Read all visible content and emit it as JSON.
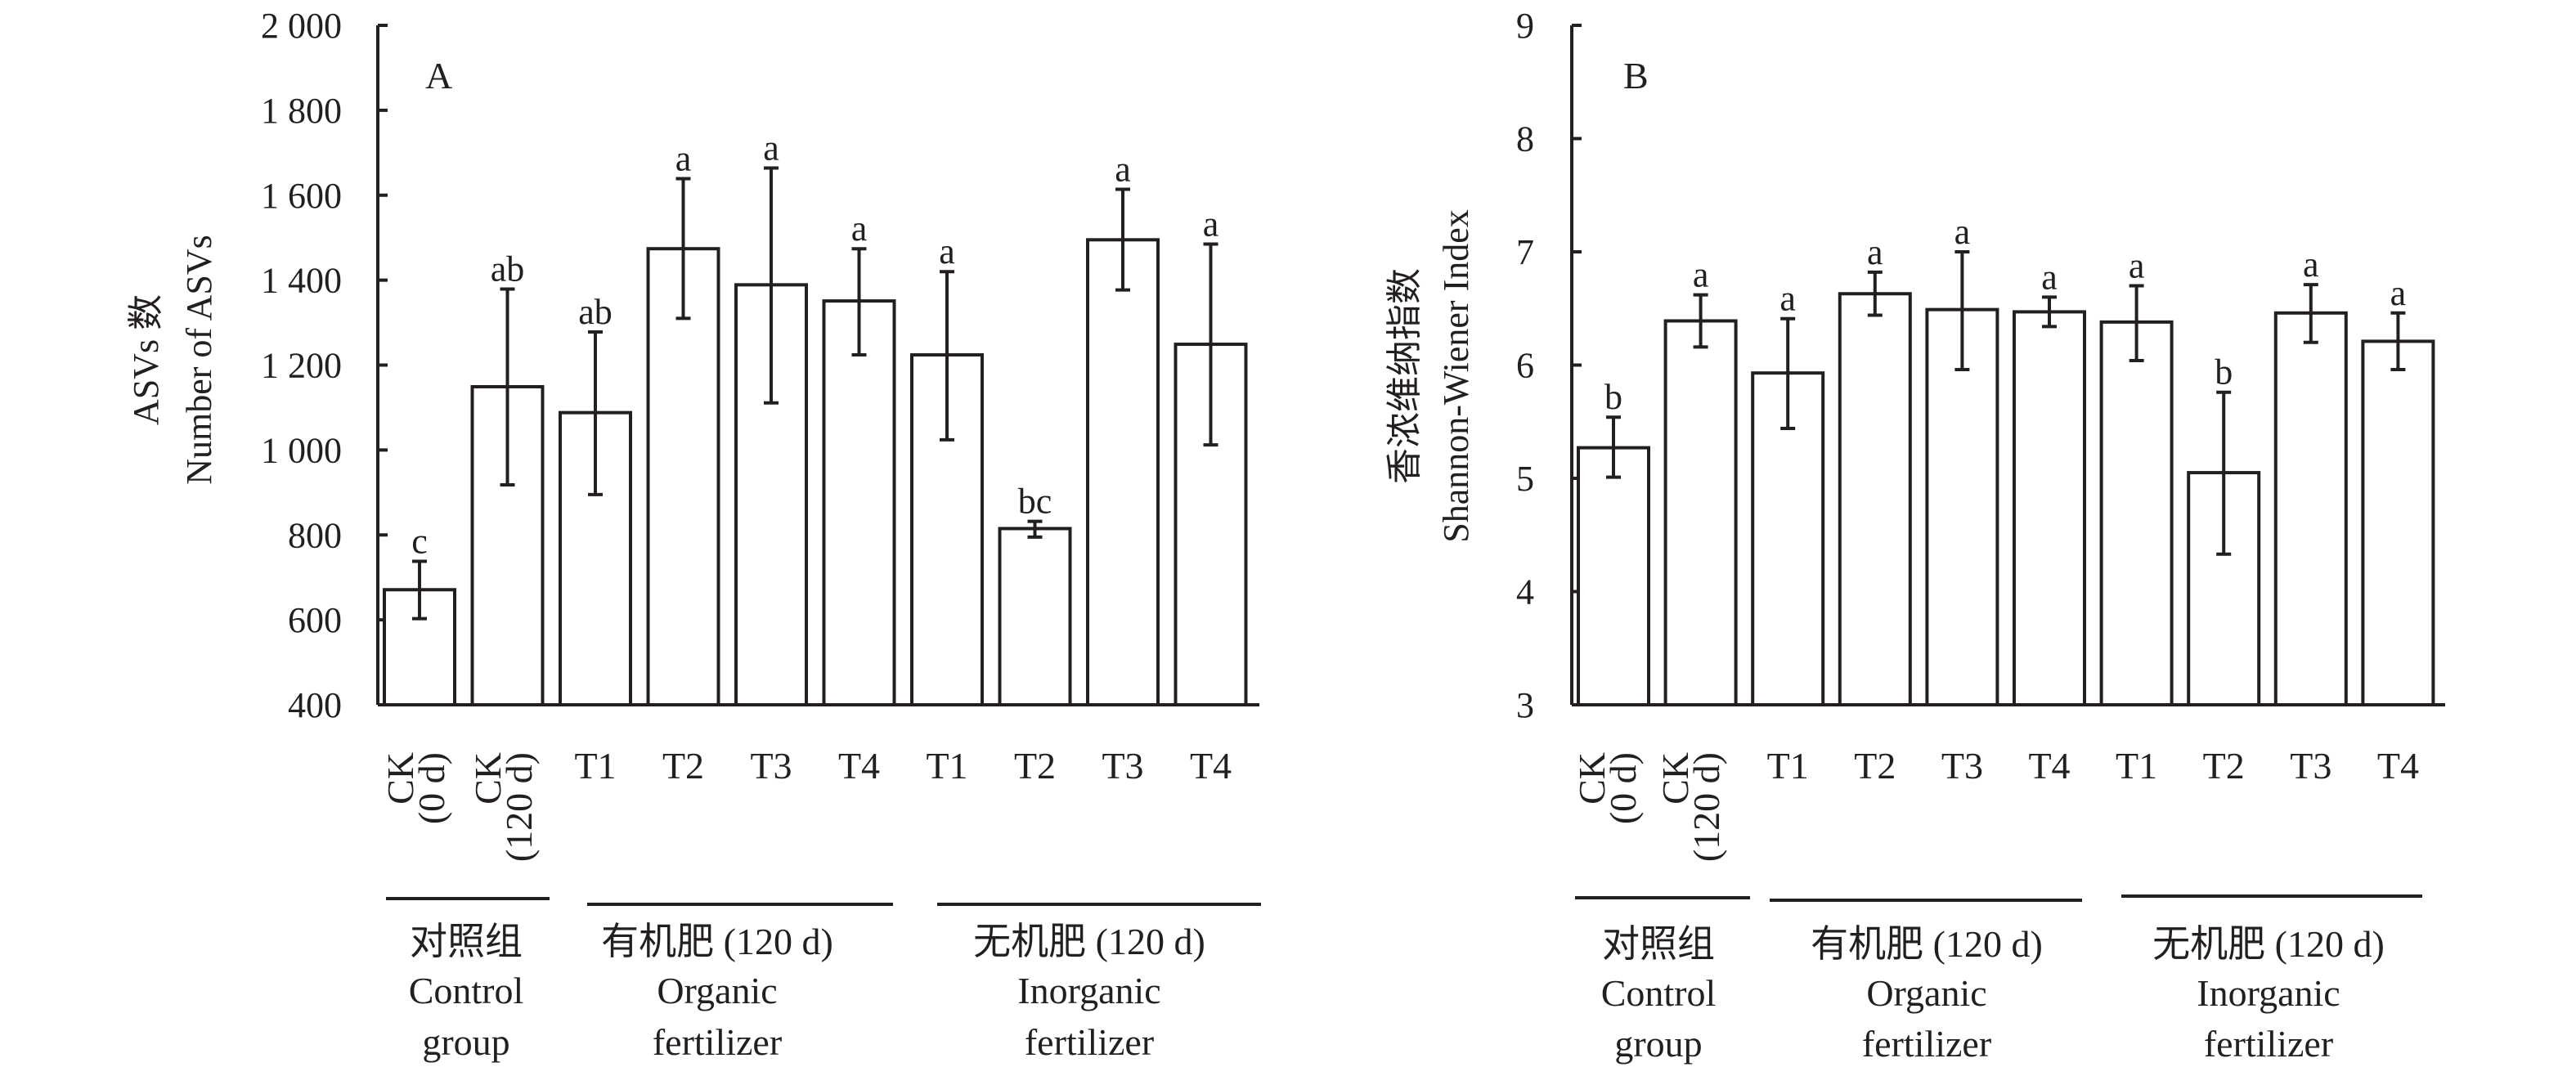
{
  "chart_data": [
    {
      "type": "bar",
      "panel": "A",
      "title": "",
      "ylabel_cn": "ASVs 数",
      "ylabel": "Number of ASVs",
      "xlabel": "",
      "ylim": [
        400,
        2000
      ],
      "yticks": [
        400,
        600,
        800,
        1000,
        1200,
        1400,
        1600,
        1800,
        2000
      ],
      "ytick_labels": [
        "400",
        "600",
        "800",
        "1 000",
        "1 200",
        "1 400",
        "1 600",
        "1 800",
        "2 000"
      ],
      "grid": false,
      "categories": [
        "CK (0 d)",
        "CK (120 d)",
        "T1",
        "T2",
        "T3",
        "T4",
        "T1",
        "T2",
        "T3",
        "T4"
      ],
      "values": [
        671,
        1149,
        1088,
        1474,
        1389,
        1351,
        1224,
        815,
        1495,
        1249
      ],
      "error_upper": [
        738,
        1379,
        1278,
        1639,
        1664,
        1474,
        1420,
        832,
        1614,
        1485
      ],
      "error_lower": [
        603,
        918,
        895,
        1310,
        1111,
        1224,
        1024,
        795,
        1377,
        1012
      ],
      "significance": [
        "c",
        "ab",
        "ab",
        "a",
        "a",
        "a",
        "a",
        "bc",
        "a",
        "a"
      ]
    },
    {
      "type": "bar",
      "panel": "B",
      "title": "",
      "ylabel_cn": "香浓维纳指数",
      "ylabel": "Shannon-Wiener Index",
      "xlabel": "",
      "ylim": [
        3,
        9
      ],
      "yticks": [
        3,
        4,
        5,
        6,
        7,
        8,
        9
      ],
      "ytick_labels": [
        "3",
        "4",
        "5",
        "6",
        "7",
        "8",
        "9"
      ],
      "grid": false,
      "categories": [
        "CK (0 d)",
        "CK (120 d)",
        "T1",
        "T2",
        "T3",
        "T4",
        "T1",
        "T2",
        "T3",
        "T4"
      ],
      "values": [
        5.27,
        6.39,
        5.93,
        6.63,
        6.49,
        6.47,
        6.38,
        5.05,
        6.46,
        6.21
      ],
      "error_upper": [
        5.54,
        6.62,
        6.41,
        6.82,
        7.0,
        6.6,
        6.7,
        5.76,
        6.71,
        6.46
      ],
      "error_lower": [
        5.01,
        6.16,
        5.44,
        6.44,
        5.96,
        6.34,
        6.04,
        4.33,
        6.2,
        5.96
      ],
      "significance": [
        "b",
        "a",
        "a",
        "a",
        "a",
        "a",
        "a",
        "b",
        "a",
        "a"
      ]
    }
  ],
  "groups": [
    {
      "cn": "对照组",
      "en_line1": "Control",
      "en_line2": "group",
      "span": [
        0,
        1
      ]
    },
    {
      "cn": "有机肥 (120 d)",
      "en_line1": "Organic",
      "en_line2": "fertilizer",
      "span": [
        2,
        5
      ]
    },
    {
      "cn": "无机肥 (120 d)",
      "en_line1": "Inorganic",
      "en_line2": "fertilizer",
      "span": [
        6,
        9
      ]
    }
  ],
  "ck_labels": [
    {
      "line1": "CK",
      "line2": "(0 d)"
    },
    {
      "line1": "CK",
      "line2": "(120 d)"
    }
  ]
}
